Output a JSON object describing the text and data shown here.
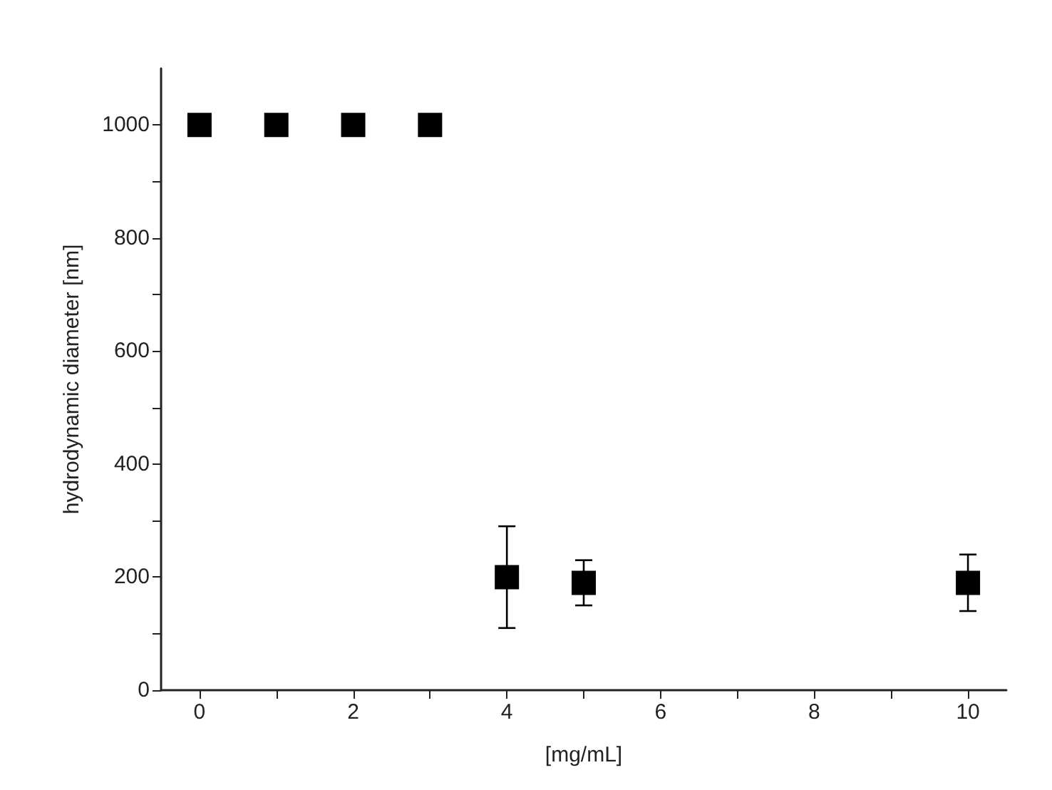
{
  "chart_data": {
    "type": "scatter",
    "xlabel": "[mg/mL]",
    "ylabel": "hydrodynamic diameter [nm]",
    "x": [
      0,
      1,
      2,
      3,
      4,
      5,
      10
    ],
    "series": [
      {
        "color": "#000000",
        "values": [
          1000,
          1000,
          1000,
          1000,
          200,
          190,
          190
        ],
        "errors": [
          null,
          null,
          null,
          null,
          90,
          40,
          50
        ]
      }
    ],
    "xlim": [
      -0.5,
      10.5
    ],
    "ylim": [
      0,
      1100
    ],
    "xticks": [
      0,
      {
        "value": 1,
        "label": null
      },
      2,
      {
        "value": 3,
        "label": null
      },
      4,
      {
        "value": 5,
        "label": null
      },
      6,
      {
        "value": 7,
        "label": null
      },
      8,
      {
        "value": 9,
        "label": null
      },
      10
    ],
    "yticks": [
      0,
      {
        "value": 100,
        "label": null
      },
      200,
      {
        "value": 300,
        "label": null
      },
      400,
      {
        "value": 500,
        "label": null
      },
      600,
      {
        "value": 700,
        "label": null
      },
      800,
      {
        "value": 900,
        "label": null
      },
      1000
    ],
    "marker": "square",
    "grid": false
  }
}
